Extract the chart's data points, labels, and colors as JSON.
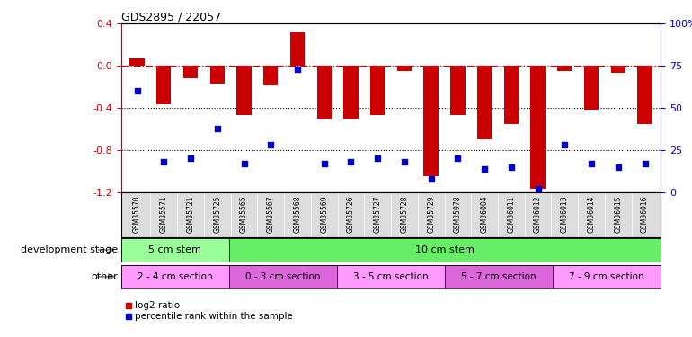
{
  "title": "GDS2895 / 22057",
  "samples": [
    "GSM35570",
    "GSM35571",
    "GSM35721",
    "GSM35725",
    "GSM35565",
    "GSM35567",
    "GSM35568",
    "GSM35569",
    "GSM35726",
    "GSM35727",
    "GSM35728",
    "GSM35729",
    "GSM35978",
    "GSM36004",
    "GSM36011",
    "GSM36012",
    "GSM36013",
    "GSM36014",
    "GSM36015",
    "GSM36016"
  ],
  "log2_ratio": [
    0.07,
    -0.37,
    -0.12,
    -0.17,
    -0.47,
    -0.19,
    0.32,
    -0.5,
    -0.5,
    -0.47,
    -0.05,
    -1.05,
    -0.47,
    -0.7,
    -0.55,
    -1.17,
    -0.05,
    -0.42,
    -0.07,
    -0.55
  ],
  "pct_rank": [
    60,
    18,
    20,
    38,
    17,
    28,
    73,
    17,
    18,
    20,
    18,
    8,
    20,
    14,
    15,
    2,
    28,
    17,
    15,
    17
  ],
  "bar_color": "#cc0000",
  "dot_color": "#0000cc",
  "ylim_left": [
    -1.2,
    0.4
  ],
  "ylim_right": [
    0,
    100
  ],
  "yticks_left": [
    -1.2,
    -0.8,
    -0.4,
    0.0,
    0.4
  ],
  "yticks_right": [
    0,
    25,
    50,
    75,
    100
  ],
  "hline_y": 0.0,
  "dotted_lines": [
    -0.4,
    -0.8
  ],
  "dev_stage_groups": [
    {
      "label": "5 cm stem",
      "start": 0,
      "end": 4,
      "color": "#99ff99"
    },
    {
      "label": "10 cm stem",
      "start": 4,
      "end": 20,
      "color": "#66ee66"
    }
  ],
  "other_groups": [
    {
      "label": "2 - 4 cm section",
      "start": 0,
      "end": 4,
      "color": "#ff99ff"
    },
    {
      "label": "0 - 3 cm section",
      "start": 4,
      "end": 8,
      "color": "#dd66dd"
    },
    {
      "label": "3 - 5 cm section",
      "start": 8,
      "end": 12,
      "color": "#ff99ff"
    },
    {
      "label": "5 - 7 cm section",
      "start": 12,
      "end": 16,
      "color": "#dd66dd"
    },
    {
      "label": "7 - 9 cm section",
      "start": 16,
      "end": 20,
      "color": "#ff99ff"
    }
  ],
  "dev_stage_label": "development stage",
  "other_label": "other",
  "legend_bar_label": "log2 ratio",
  "legend_dot_label": "percentile rank within the sample",
  "background_color": "#ffffff",
  "plot_bg_color": "#ffffff",
  "tick_label_color_left": "#cc0000",
  "tick_label_color_right": "#0000cc",
  "xticklabel_bg": "#dddddd"
}
